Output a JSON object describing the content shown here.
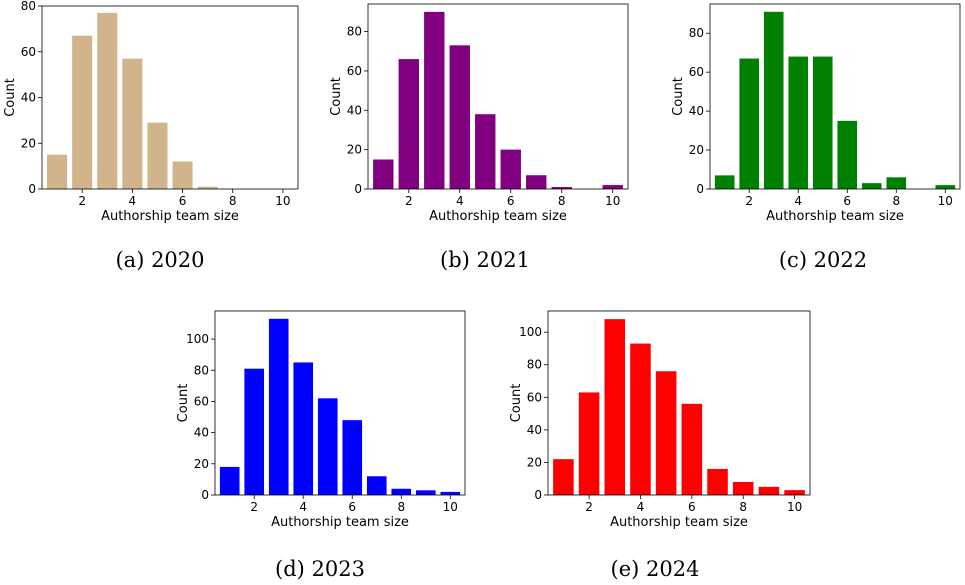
{
  "chart_data": [
    {
      "type": "bar",
      "caption": "(a) 2020",
      "color": "#D2B48C",
      "x": [
        1,
        2,
        3,
        4,
        5,
        6,
        7,
        8,
        9,
        10
      ],
      "values": [
        15,
        67,
        77,
        57,
        29,
        12,
        1,
        0,
        0,
        0
      ],
      "xlabel": "Authorship team size",
      "ylabel": "Count",
      "xticks": [
        2,
        4,
        6,
        8,
        10
      ],
      "yticks": [
        0,
        20,
        40,
        60,
        80
      ],
      "xlim": [
        0.4,
        10.6
      ],
      "ylim": [
        0,
        80
      ]
    },
    {
      "type": "bar",
      "caption": "(b) 2021",
      "color": "#800080",
      "x": [
        1,
        2,
        3,
        4,
        5,
        6,
        7,
        8,
        9,
        10
      ],
      "values": [
        15,
        66,
        90,
        73,
        38,
        20,
        7,
        1,
        0,
        2
      ],
      "xlabel": "Authorship team size",
      "ylabel": "Count",
      "xticks": [
        2,
        4,
        6,
        8,
        10
      ],
      "yticks": [
        0,
        20,
        40,
        60,
        80
      ],
      "xlim": [
        0.4,
        10.6
      ],
      "ylim": [
        0,
        94
      ]
    },
    {
      "type": "bar",
      "caption": "(c) 2022",
      "color": "#008000",
      "x": [
        1,
        2,
        3,
        4,
        5,
        6,
        7,
        8,
        9,
        10
      ],
      "values": [
        7,
        67,
        91,
        68,
        68,
        35,
        3,
        6,
        0,
        2
      ],
      "xlabel": "Authorship team size",
      "ylabel": "Count",
      "xticks": [
        2,
        4,
        6,
        8,
        10
      ],
      "yticks": [
        0,
        20,
        40,
        60,
        80
      ],
      "xlim": [
        0.4,
        10.6
      ],
      "ylim": [
        0,
        95
      ]
    },
    {
      "type": "bar",
      "caption": "(d) 2023",
      "color": "#0000FF",
      "x": [
        1,
        2,
        3,
        4,
        5,
        6,
        7,
        8,
        9,
        10
      ],
      "values": [
        18,
        81,
        113,
        85,
        62,
        48,
        12,
        4,
        3,
        2
      ],
      "xlabel": "Authorship team size",
      "ylabel": "Count",
      "xticks": [
        2,
        4,
        6,
        8,
        10
      ],
      "yticks": [
        0,
        20,
        40,
        60,
        80,
        100
      ],
      "xlim": [
        0.4,
        10.6
      ],
      "ylim": [
        0,
        118
      ]
    },
    {
      "type": "bar",
      "caption": "(e) 2024",
      "color": "#FF0000",
      "x": [
        1,
        2,
        3,
        4,
        5,
        6,
        7,
        8,
        9,
        10
      ],
      "values": [
        22,
        63,
        108,
        93,
        76,
        56,
        16,
        8,
        5,
        3
      ],
      "xlabel": "Authorship team size",
      "ylabel": "Count",
      "xticks": [
        2,
        4,
        6,
        8,
        10
      ],
      "yticks": [
        0,
        20,
        40,
        60,
        80,
        100
      ],
      "xlim": [
        0.4,
        10.6
      ],
      "ylim": [
        0,
        113
      ]
    }
  ]
}
